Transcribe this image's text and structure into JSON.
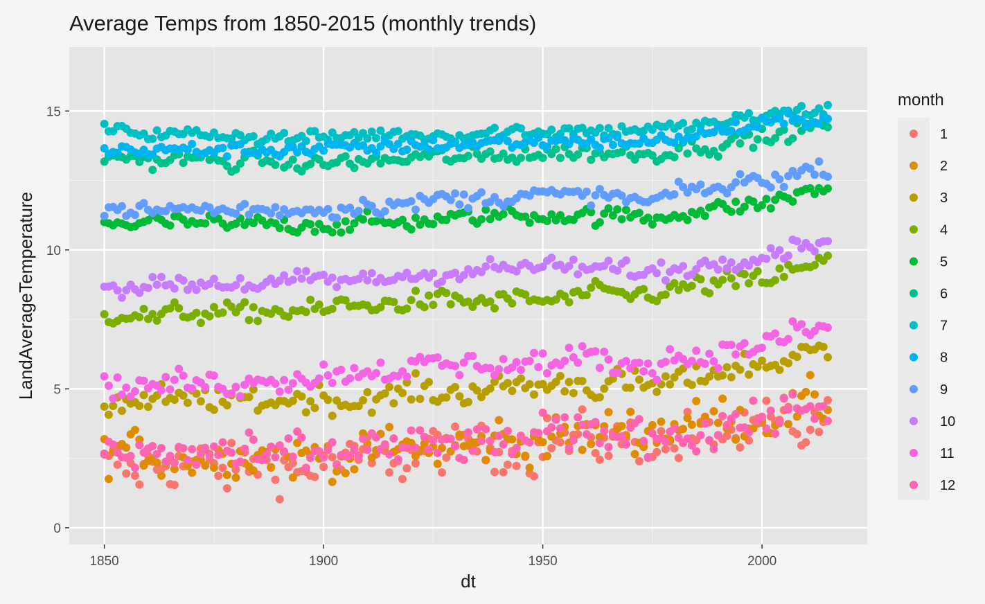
{
  "chart_data": {
    "type": "scatter",
    "title": "Average Temps from 1850-2015 (monthly trends)",
    "xlabel": "dt",
    "ylabel": "LandAverageTemperature",
    "xlim": [
      1842,
      2024
    ],
    "ylim": [
      -0.6,
      17.3
    ],
    "x_ticks": [
      1850,
      1900,
      1950,
      2000
    ],
    "x_tick_labels": [
      "1850",
      "1900",
      "1950",
      "2000"
    ],
    "y_ticks": [
      0,
      5,
      10,
      15
    ],
    "y_tick_labels": [
      "0",
      "5",
      "10",
      "15"
    ],
    "x_range": [
      1850,
      2015
    ],
    "grid": true,
    "legend_title": "month",
    "legend_position": "right",
    "series": [
      {
        "name": "1",
        "color": "#F8766D",
        "base": [
          [
            1850,
            2.2
          ],
          [
            1900,
            2.3
          ],
          [
            1950,
            3.0
          ],
          [
            1975,
            3.1
          ],
          [
            2000,
            3.4
          ],
          [
            2015,
            3.7
          ]
        ],
        "noise": 0.9
      },
      {
        "name": "2",
        "color": "#DE8C00",
        "base": [
          [
            1850,
            2.7
          ],
          [
            1900,
            2.6
          ],
          [
            1950,
            3.2
          ],
          [
            1975,
            3.5
          ],
          [
            2000,
            4.0
          ],
          [
            2015,
            4.2
          ]
        ],
        "noise": 0.8
      },
      {
        "name": "3",
        "color": "#B79F00",
        "base": [
          [
            1850,
            4.5
          ],
          [
            1900,
            4.6
          ],
          [
            1950,
            5.1
          ],
          [
            1975,
            5.2
          ],
          [
            2000,
            5.9
          ],
          [
            2015,
            6.3
          ]
        ],
        "noise": 0.5
      },
      {
        "name": "4",
        "color": "#7CAE00",
        "base": [
          [
            1850,
            7.6
          ],
          [
            1900,
            7.9
          ],
          [
            1950,
            8.3
          ],
          [
            1975,
            8.4
          ],
          [
            2000,
            9.0
          ],
          [
            2015,
            9.5
          ]
        ],
        "noise": 0.35
      },
      {
        "name": "5",
        "color": "#00BA38",
        "base": [
          [
            1850,
            11.0
          ],
          [
            1900,
            10.9
          ],
          [
            1950,
            11.3
          ],
          [
            1975,
            11.2
          ],
          [
            2000,
            11.7
          ],
          [
            2015,
            12.3
          ]
        ],
        "noise": 0.3
      },
      {
        "name": "6",
        "color": "#00C08B",
        "base": [
          [
            1850,
            13.3
          ],
          [
            1900,
            13.1
          ],
          [
            1950,
            13.5
          ],
          [
            1975,
            13.5
          ],
          [
            2000,
            14.0
          ],
          [
            2015,
            14.5
          ]
        ],
        "noise": 0.3
      },
      {
        "name": "7",
        "color": "#00BFC4",
        "base": [
          [
            1850,
            14.3
          ],
          [
            1900,
            14.0
          ],
          [
            1950,
            14.3
          ],
          [
            1975,
            14.3
          ],
          [
            2000,
            14.8
          ],
          [
            2015,
            15.1
          ]
        ],
        "noise": 0.25
      },
      {
        "name": "8",
        "color": "#00B4F0",
        "base": [
          [
            1850,
            13.6
          ],
          [
            1900,
            13.6
          ],
          [
            1950,
            13.9
          ],
          [
            1975,
            13.9
          ],
          [
            2000,
            14.5
          ],
          [
            2015,
            14.8
          ]
        ],
        "noise": 0.25
      },
      {
        "name": "9",
        "color": "#619CFF",
        "base": [
          [
            1850,
            11.4
          ],
          [
            1900,
            11.5
          ],
          [
            1950,
            12.0
          ],
          [
            1975,
            11.8
          ],
          [
            2000,
            12.5
          ],
          [
            2015,
            13.0
          ]
        ],
        "noise": 0.3
      },
      {
        "name": "10",
        "color": "#C77CFF",
        "base": [
          [
            1850,
            8.7
          ],
          [
            1900,
            8.9
          ],
          [
            1950,
            9.4
          ],
          [
            1975,
            9.2
          ],
          [
            2000,
            9.9
          ],
          [
            2015,
            10.4
          ]
        ],
        "noise": 0.35
      },
      {
        "name": "11",
        "color": "#F564E3",
        "base": [
          [
            1850,
            5.0
          ],
          [
            1900,
            5.5
          ],
          [
            1950,
            6.0
          ],
          [
            1975,
            5.9
          ],
          [
            2000,
            6.6
          ],
          [
            2015,
            7.2
          ]
        ],
        "noise": 0.45
      },
      {
        "name": "12",
        "color": "#FF64B0",
        "base": [
          [
            1850,
            2.6
          ],
          [
            1900,
            2.7
          ],
          [
            1950,
            3.2
          ],
          [
            1975,
            3.3
          ],
          [
            2000,
            3.9
          ],
          [
            2015,
            4.6
          ]
        ],
        "noise": 0.7
      }
    ]
  }
}
